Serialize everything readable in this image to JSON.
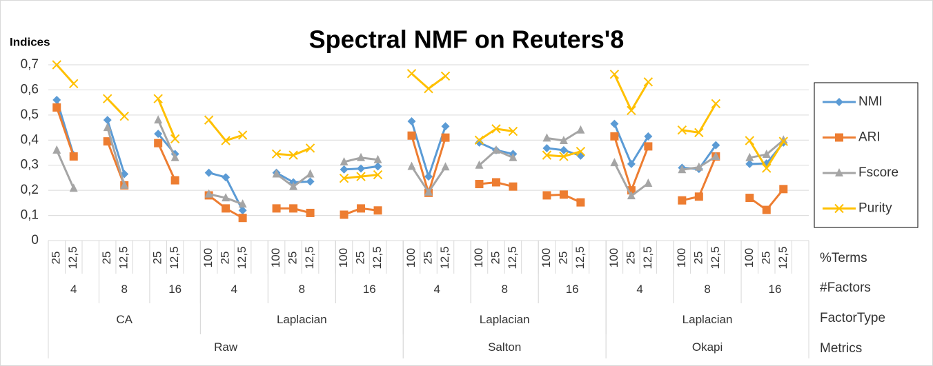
{
  "chart_data": {
    "type": "line",
    "title": "Spectral NMF on Reuters'8",
    "y_label": "Indices",
    "level_names": [
      "%Terms",
      "#Factors",
      "FactorType",
      "Metrics"
    ],
    "metrics": [
      {
        "label": "Raw",
        "factor_types": [
          {
            "label": "CA",
            "factors": [
              {
                "label": "4",
                "terms": [
                  "25",
                  "12,5",
                  null
                ]
              },
              {
                "label": "8",
                "terms": [
                  "25",
                  "12,5",
                  null
                ]
              },
              {
                "label": "16",
                "terms": [
                  "25",
                  "12,5",
                  null
                ]
              }
            ]
          },
          {
            "label": "Laplacian",
            "factors": [
              {
                "label": "4",
                "terms": [
                  "100",
                  "25",
                  "12,5",
                  null
                ]
              },
              {
                "label": "8",
                "terms": [
                  "100",
                  "25",
                  "12,5",
                  null
                ]
              },
              {
                "label": "16",
                "terms": [
                  "100",
                  "25",
                  "12,5",
                  null
                ]
              }
            ]
          }
        ]
      },
      {
        "label": "Salton",
        "factor_types": [
          {
            "label": "Laplacian",
            "factors": [
              {
                "label": "4",
                "terms": [
                  "100",
                  "25",
                  "12,5",
                  null
                ]
              },
              {
                "label": "8",
                "terms": [
                  "100",
                  "25",
                  "12,5",
                  null
                ]
              },
              {
                "label": "16",
                "terms": [
                  "100",
                  "25",
                  "12,5",
                  null
                ]
              }
            ]
          }
        ]
      },
      {
        "label": "Okapi",
        "factor_types": [
          {
            "label": "Laplacian",
            "factors": [
              {
                "label": "4",
                "terms": [
                  "100",
                  "25",
                  "12,5",
                  null
                ]
              },
              {
                "label": "8",
                "terms": [
                  "100",
                  "25",
                  "12,5",
                  null
                ]
              },
              {
                "label": "16",
                "terms": [
                  "100",
                  "25",
                  "12,5",
                  null
                ]
              }
            ]
          }
        ]
      }
    ],
    "series": [
      {
        "name": "NMI",
        "color": "#5b9bd5",
        "marker": "diamond",
        "values": [
          0.56,
          0.34,
          null,
          0.48,
          0.265,
          null,
          0.425,
          0.345,
          null,
          0.27,
          0.252,
          0.12,
          null,
          0.27,
          0.232,
          0.235,
          null,
          0.283,
          0.287,
          0.295,
          null,
          0.475,
          0.255,
          0.455,
          null,
          0.39,
          0.36,
          0.345,
          null,
          0.368,
          0.36,
          0.338,
          null,
          0.465,
          0.305,
          0.415,
          null,
          0.29,
          0.285,
          0.38,
          null,
          0.305,
          0.307,
          0.39,
          null
        ]
      },
      {
        "name": "ARI",
        "color": "#ed7d31",
        "marker": "square",
        "values": [
          0.53,
          0.335,
          null,
          0.395,
          0.22,
          null,
          0.388,
          0.24,
          null,
          0.18,
          0.128,
          0.09,
          null,
          0.128,
          0.128,
          0.11,
          null,
          0.103,
          0.128,
          0.12,
          null,
          0.418,
          0.19,
          0.41,
          null,
          0.225,
          0.232,
          0.215,
          null,
          0.18,
          0.183,
          0.152,
          null,
          0.415,
          0.2,
          0.375,
          null,
          0.16,
          0.175,
          0.335,
          null,
          0.17,
          0.122,
          0.205,
          null
        ]
      },
      {
        "name": "Fscore",
        "color": "#a5a5a5",
        "marker": "triangle",
        "values": [
          0.36,
          0.208,
          null,
          0.45,
          0.22,
          null,
          0.48,
          0.33,
          null,
          0.185,
          0.17,
          0.145,
          null,
          0.265,
          0.215,
          0.265,
          null,
          0.313,
          0.33,
          0.322,
          null,
          0.295,
          0.193,
          0.293,
          null,
          0.3,
          0.36,
          0.33,
          null,
          0.408,
          0.398,
          0.44,
          null,
          0.31,
          0.178,
          0.228,
          null,
          0.282,
          0.292,
          0.335,
          null,
          0.33,
          0.343,
          0.4,
          null
        ]
      },
      {
        "name": "Purity",
        "color": "#ffc000",
        "marker": "x",
        "values": [
          0.7,
          0.625,
          null,
          0.565,
          0.495,
          null,
          0.565,
          0.405,
          null,
          0.48,
          0.398,
          0.42,
          null,
          0.345,
          0.34,
          0.368,
          null,
          0.248,
          0.255,
          0.262,
          null,
          0.665,
          0.605,
          0.655,
          null,
          0.4,
          0.445,
          0.435,
          null,
          0.34,
          0.335,
          0.355,
          null,
          0.662,
          0.518,
          0.632,
          null,
          0.44,
          0.43,
          0.545,
          null,
          0.398,
          0.288,
          0.395,
          null
        ]
      }
    ],
    "ylim": [
      0,
      0.7
    ],
    "yticks": [
      0,
      {
        "value": 0.1,
        "label": "0,1"
      },
      {
        "value": 0.2,
        "label": "0,2"
      },
      {
        "value": 0.3,
        "label": "0,3"
      },
      {
        "value": 0.4,
        "label": "0,4"
      },
      {
        "value": 0.5,
        "label": "0,5"
      },
      {
        "value": 0.6,
        "label": "0,6"
      },
      {
        "value": 0.7,
        "label": "0,7"
      }
    ],
    "grid": true,
    "legend": "right"
  }
}
